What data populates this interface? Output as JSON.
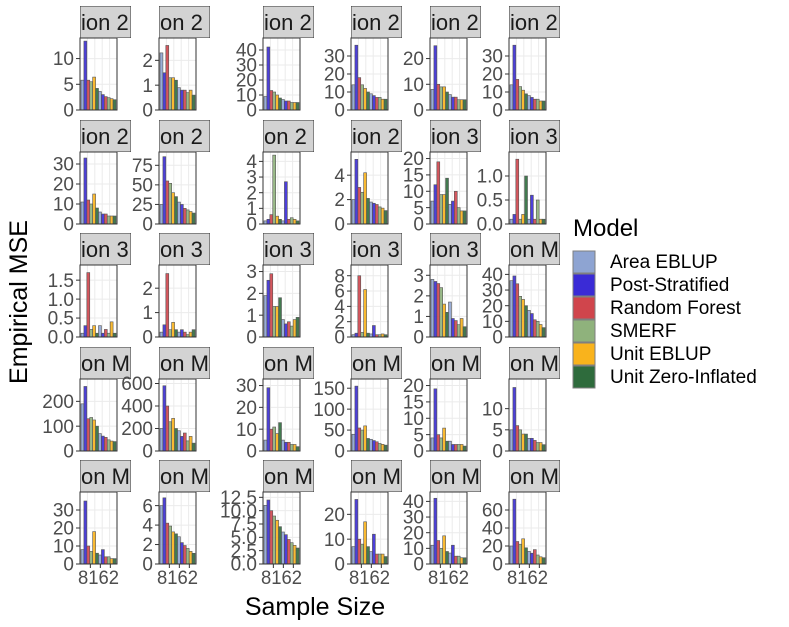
{
  "figure": {
    "y_axis_label": "Empirical MSE",
    "x_axis_label": "Sample Size",
    "legend_title": "Model",
    "strip_color": "#d3d3d3",
    "grid_color": "#ebebeb",
    "bar_stroke": "#555555"
  },
  "chart_data": {
    "type": "bar",
    "x_tick_labels": [
      "8",
      "16",
      "2"
    ],
    "legend_placement": "right",
    "grid": true,
    "series": [
      {
        "name": "Area EBLUP",
        "color": "#8EA4D2"
      },
      {
        "name": "Post-Stratified",
        "color": "#3A2BD6"
      },
      {
        "name": "Random Forest",
        "color": "#D0454C"
      },
      {
        "name": "SMERF",
        "color": "#8FB27C"
      },
      {
        "name": "Unit EBLUP",
        "color": "#F9B31C"
      },
      {
        "name": "Unit Zero-Inflated",
        "color": "#2E6B3C"
      }
    ],
    "panels": [
      {
        "strip": "ion 2",
        "ylim": [
          0,
          14
        ],
        "yticks": [
          0,
          5,
          10
        ],
        "values": [
          5.8,
          13.4,
          5.8,
          5.5,
          6.4,
          4.2,
          3.6,
          3.0,
          2.6,
          2.4,
          2.2,
          2.0
        ]
      },
      {
        "strip": "on 2",
        "ylim": [
          0,
          2.9
        ],
        "yticks": [
          0,
          1,
          2
        ],
        "values": [
          2.3,
          1.5,
          2.6,
          1.3,
          1.3,
          1.2,
          0.9,
          0.8,
          0.8,
          0.7,
          0.8,
          0.6
        ]
      },
      {
        "strip": "ion 2",
        "ylim": [
          0,
          48
        ],
        "yticks": [
          0,
          10,
          20,
          30,
          40
        ],
        "values": [
          9,
          42,
          13,
          12,
          10,
          8,
          7,
          6,
          6,
          5,
          5,
          5
        ]
      },
      {
        "strip": "ion 2",
        "ylim": [
          0,
          40
        ],
        "yticks": [
          0,
          10,
          20,
          30
        ],
        "values": [
          14,
          36,
          18,
          14,
          12,
          10,
          9,
          8,
          7,
          7,
          6,
          6
        ]
      },
      {
        "strip": "ion 2",
        "ylim": [
          0,
          28
        ],
        "yticks": [
          0,
          10,
          20
        ],
        "values": [
          8,
          25,
          10,
          9,
          9,
          7,
          6,
          5,
          5,
          4,
          4,
          4
        ]
      },
      {
        "strip": "ion 2",
        "ylim": [
          0,
          40
        ],
        "yticks": [
          0,
          10,
          20,
          30
        ],
        "values": [
          14,
          36,
          17,
          13,
          11,
          9,
          8,
          7,
          6,
          6,
          5,
          5
        ]
      },
      {
        "strip": "ion 2",
        "ylim": [
          0,
          36
        ],
        "yticks": [
          0,
          10,
          20,
          30
        ],
        "values": [
          11,
          33,
          12,
          10,
          15,
          8,
          6,
          5,
          5,
          4,
          4,
          4
        ]
      },
      {
        "strip": "on 2",
        "ylim": [
          0,
          92
        ],
        "yticks": [
          0,
          25,
          50,
          75
        ],
        "values": [
          25,
          86,
          55,
          52,
          40,
          35,
          28,
          25,
          20,
          18,
          16,
          14
        ]
      },
      {
        "strip": "on 2",
        "ylim": [
          0,
          4.6
        ],
        "yticks": [
          0,
          1,
          2,
          3,
          4
        ],
        "values": [
          0.2,
          0.3,
          0.6,
          4.4,
          0.5,
          0.3,
          0.2,
          2.7,
          0.3,
          0.4,
          0.3,
          0.2
        ]
      },
      {
        "strip": "ion 2",
        "ylim": [
          0,
          5.9
        ],
        "yticks": [
          0,
          2,
          4
        ],
        "values": [
          2.0,
          5.3,
          3.0,
          2.6,
          4.2,
          2.1,
          1.8,
          1.7,
          1.6,
          1.4,
          1.3,
          1.1
        ]
      },
      {
        "strip": "ion 3",
        "ylim": [
          0,
          22
        ],
        "yticks": [
          0,
          5,
          10,
          15,
          20
        ],
        "values": [
          7,
          12,
          19,
          9,
          9,
          14,
          6,
          7,
          10,
          5,
          4,
          4
        ]
      },
      {
        "strip": "ion 3",
        "ylim": [
          0,
          1.5
        ],
        "yticks": [
          0,
          0.5,
          1.0
        ],
        "yticklabels": [
          "0.0",
          "0.5",
          "1.0"
        ],
        "values": [
          0.1,
          0.2,
          1.35,
          0.1,
          0.2,
          1.0,
          0.1,
          0.6,
          0.1,
          0.5,
          0.1,
          0.1
        ]
      },
      {
        "strip": "ion 3",
        "ylim": [
          0,
          1.9
        ],
        "yticks": [
          0,
          0.5,
          1.0,
          1.5
        ],
        "yticklabels": [
          "0.0",
          "0.5",
          "1.0",
          "1.5"
        ],
        "values": [
          0.1,
          0.3,
          1.7,
          0.2,
          0.3,
          0.1,
          0.3,
          0.1,
          0.2,
          0.1,
          0.4,
          0.1
        ]
      },
      {
        "strip": "on 3",
        "ylim": [
          0,
          2.95
        ],
        "yticks": [
          0,
          1,
          2
        ],
        "values": [
          0.2,
          0.5,
          2.6,
          0.3,
          0.6,
          0.3,
          0.2,
          0.3,
          0.2,
          0.1,
          0.2,
          0.3
        ]
      },
      {
        "strip": "ion 3",
        "ylim": [
          0,
          3.3
        ],
        "yticks": [
          0,
          1,
          2,
          3
        ],
        "values": [
          1.9,
          2.6,
          2.9,
          1.4,
          1.4,
          1.8,
          0.8,
          0.6,
          0.7,
          0.5,
          0.8,
          0.9
        ]
      },
      {
        "strip": "ion 3",
        "ylim": [
          0,
          9.4
        ],
        "yticks": [
          0,
          2,
          4,
          6,
          8
        ],
        "values": [
          0.3,
          0.5,
          8.0,
          0.6,
          6.2,
          0.5,
          0.4,
          1.5,
          0.3,
          0.3,
          0.4,
          0.3
        ]
      },
      {
        "strip": "ion 3",
        "ylim": [
          0,
          3.5
        ],
        "yticks": [
          0,
          1,
          2,
          3
        ],
        "values": [
          2.8,
          2.7,
          2.6,
          2.4,
          1.6,
          1.2,
          1.7,
          0.9,
          0.8,
          0.6,
          0.9,
          0.5
        ]
      },
      {
        "strip": "on M",
        "ylim": [
          0,
          46
        ],
        "yticks": [
          0,
          10,
          20,
          30,
          40
        ],
        "values": [
          36,
          39,
          34,
          26,
          24,
          20,
          17,
          15,
          11,
          10,
          8,
          6
        ]
      },
      {
        "strip": "on M",
        "ylim": [
          0,
          290
        ],
        "yticks": [
          0,
          100,
          200
        ],
        "values": [
          190,
          260,
          130,
          135,
          125,
          100,
          70,
          60,
          55,
          45,
          40,
          38
        ]
      },
      {
        "strip": "on M",
        "ylim": [
          0,
          640
        ],
        "yticks": [
          0,
          200,
          400,
          600
        ],
        "values": [
          200,
          580,
          400,
          260,
          290,
          200,
          180,
          130,
          160,
          90,
          130,
          70
        ]
      },
      {
        "strip": "on M",
        "ylim": [
          0,
          33
        ],
        "yticks": [
          0,
          10,
          20,
          30
        ],
        "values": [
          5,
          29,
          10,
          11,
          8,
          13,
          5,
          4,
          4,
          3,
          3,
          2
        ]
      },
      {
        "strip": "on M",
        "ylim": [
          0,
          172
        ],
        "yticks": [
          0,
          50,
          100,
          150
        ],
        "values": [
          40,
          155,
          55,
          50,
          60,
          30,
          28,
          25,
          22,
          18,
          16,
          14
        ]
      },
      {
        "strip": "on M",
        "ylim": [
          0,
          22
        ],
        "yticks": [
          0,
          5,
          10,
          15,
          20
        ],
        "values": [
          4,
          19,
          5,
          4,
          7,
          3,
          3,
          2,
          2,
          2,
          2,
          1.5
        ]
      },
      {
        "strip": "on M",
        "ylim": [
          0,
          17
        ],
        "yticks": [
          0,
          5,
          10
        ],
        "values": [
          5,
          15,
          6,
          5,
          4,
          4,
          3,
          3,
          2.5,
          2,
          2,
          1.5
        ]
      },
      {
        "strip": "on M",
        "ylim": [
          0,
          40
        ],
        "yticks": [
          0,
          10,
          20,
          30
        ],
        "values": [
          8,
          35,
          10,
          7,
          18,
          6,
          5,
          8,
          4,
          4,
          3,
          3
        ]
      },
      {
        "strip": "on M",
        "ylim": [
          0,
          7.4
        ],
        "yticks": [
          0,
          2,
          4,
          6
        ],
        "values": [
          6.0,
          6.8,
          4.2,
          3.9,
          3.3,
          3.1,
          2.8,
          2.2,
          1.9,
          1.6,
          1.3,
          1.1
        ]
      },
      {
        "strip": "on M",
        "ylim": [
          0,
          13.5
        ],
        "yticks": [
          0,
          2.5,
          5.0,
          7.5,
          10.0,
          12.5
        ],
        "yticklabels": [
          "0.0",
          "2.5",
          "5.0",
          "7.5",
          "10.0",
          "12.5"
        ],
        "values": [
          11.0,
          12.0,
          10.0,
          9.0,
          8.2,
          7.0,
          6.0,
          5.5,
          4.6,
          4.0,
          3.5,
          3.0
        ]
      },
      {
        "strip": "on M",
        "ylim": [
          0,
          29
        ],
        "yticks": [
          0,
          10,
          20
        ],
        "values": [
          7,
          26,
          10,
          8,
          17,
          7,
          5,
          12,
          4,
          4,
          4,
          3
        ]
      },
      {
        "strip": "on M",
        "ylim": [
          0,
          46
        ],
        "yticks": [
          0,
          10,
          20,
          30,
          40
        ],
        "values": [
          12,
          42,
          15,
          10,
          18,
          8,
          7,
          12,
          5,
          5,
          4,
          4
        ]
      },
      {
        "strip": "on M",
        "ylim": [
          0,
          80
        ],
        "yticks": [
          0,
          20,
          40,
          60
        ],
        "values": [
          20,
          72,
          25,
          22,
          28,
          18,
          14,
          12,
          16,
          10,
          8,
          7
        ]
      }
    ]
  }
}
